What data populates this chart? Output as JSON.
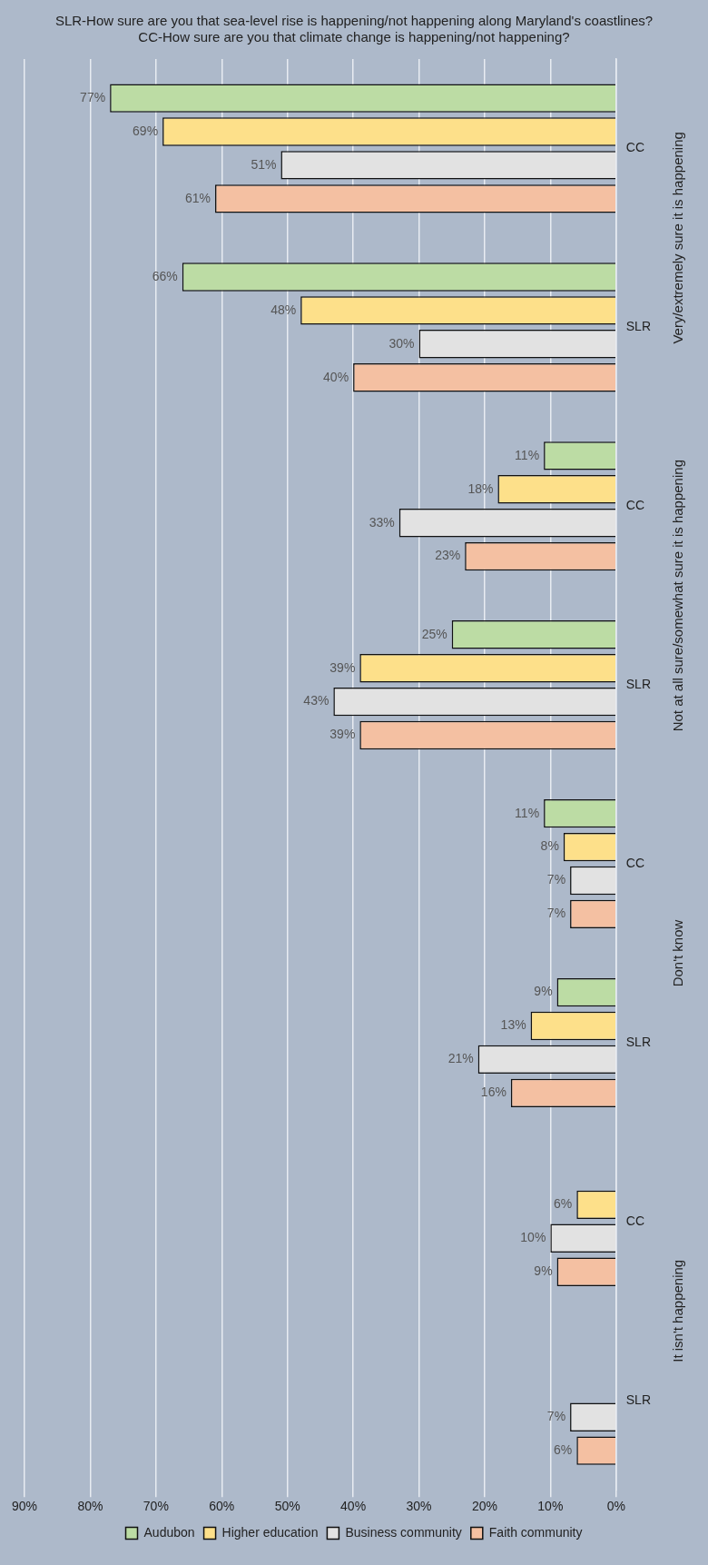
{
  "chart_data": {
    "type": "bar",
    "orientation": "horizontal",
    "title": "SLR-How sure are you that sea-level rise is happening/not happening along Maryland's coastlines?\nCC-How sure are you that climate change is happening/not happening?",
    "categories": [
      "CC",
      "SLR",
      "CC",
      "SLR",
      "CC",
      "SLR",
      "CC",
      "SLR"
    ],
    "annotations": [
      "Very/extremely sure it is happening",
      "Not at all sure/somewhat sure it is happening",
      "Don't know",
      "It isn't happening"
    ],
    "series": [
      {
        "name": "Audubon",
        "color": "#bcdca4",
        "values": [
          77,
          66,
          11,
          25,
          11,
          9,
          null,
          null
        ],
        "value_labels": [
          "77%",
          "66%",
          "11%",
          "25%",
          "11%",
          "9%",
          null,
          null
        ]
      },
      {
        "name": "Higher education",
        "color": "#fde08a",
        "values": [
          69,
          48,
          18,
          39,
          8,
          13,
          6,
          null
        ],
        "value_labels": [
          "69%",
          "48%",
          "18%",
          "39%",
          "8%",
          "13%",
          "6%",
          null
        ]
      },
      {
        "name": "Business community",
        "color": "#e2e2e2",
        "values": [
          51,
          30,
          33,
          43,
          7,
          21,
          10,
          7
        ],
        "value_labels": [
          "51%",
          "30%",
          "33%",
          "43%",
          "7%",
          "21%",
          "10%",
          "7%"
        ]
      },
      {
        "name": "Faith community",
        "color": "#f4c0a2",
        "values": [
          61,
          40,
          23,
          39,
          7,
          16,
          9,
          6
        ],
        "value_labels": [
          "61%",
          "40%",
          "23%",
          "39%",
          "7%",
          "16%",
          "9%",
          "6%"
        ]
      }
    ],
    "xlim": [
      90,
      0
    ],
    "xticks": [
      {
        "value": 90,
        "label": "90%"
      },
      {
        "value": 80,
        "label": "80%"
      },
      {
        "value": 70,
        "label": "70%"
      },
      {
        "value": 60,
        "label": "60%"
      },
      {
        "value": 50,
        "label": "50%"
      },
      {
        "value": 40,
        "label": "40%"
      },
      {
        "value": 30,
        "label": "30%"
      },
      {
        "value": 20,
        "label": "20%"
      },
      {
        "value": 10,
        "label": "10%"
      },
      {
        "value": 0,
        "label": "0%"
      }
    ],
    "grid": "x",
    "legend": "bottom"
  }
}
